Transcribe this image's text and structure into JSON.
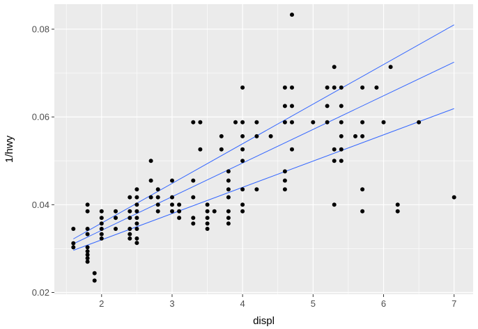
{
  "chart_data": {
    "type": "scatter",
    "xlabel": "displ",
    "ylabel": "1/hwy",
    "xlim": [
      1.33,
      7.27
    ],
    "ylim": [
      0.0196,
      0.0857
    ],
    "xticks": [
      2,
      3,
      4,
      5,
      6,
      7
    ],
    "yticks": [
      0.02,
      0.04,
      0.06,
      0.08
    ],
    "xtick_labels": [
      "2",
      "3",
      "4",
      "5",
      "6",
      "7"
    ],
    "ytick_labels": [
      "0.02",
      "0.04",
      "0.06",
      "0.08"
    ],
    "grid": true,
    "colors": {
      "panel": "#ebebeb",
      "grid": "#ffffff",
      "point": "#000000",
      "line": "#3366ff"
    },
    "points": [
      [
        1.6,
        0.0345
      ],
      [
        1.6,
        0.0312
      ],
      [
        1.6,
        0.0303
      ],
      [
        1.8,
        0.04
      ],
      [
        1.8,
        0.0385
      ],
      [
        1.8,
        0.0345
      ],
      [
        1.8,
        0.0333
      ],
      [
        1.8,
        0.0303
      ],
      [
        1.8,
        0.0294
      ],
      [
        1.8,
        0.0286
      ],
      [
        1.8,
        0.0278
      ],
      [
        1.8,
        0.027
      ],
      [
        1.9,
        0.0244
      ],
      [
        1.9,
        0.0227
      ],
      [
        2.0,
        0.0385
      ],
      [
        2.0,
        0.037
      ],
      [
        2.0,
        0.0357
      ],
      [
        2.0,
        0.0345
      ],
      [
        2.0,
        0.0333
      ],
      [
        2.0,
        0.0323
      ],
      [
        2.2,
        0.0385
      ],
      [
        2.2,
        0.037
      ],
      [
        2.2,
        0.0345
      ],
      [
        2.4,
        0.0417
      ],
      [
        2.4,
        0.0385
      ],
      [
        2.4,
        0.037
      ],
      [
        2.4,
        0.0345
      ],
      [
        2.4,
        0.0333
      ],
      [
        2.4,
        0.0323
      ],
      [
        2.5,
        0.0435
      ],
      [
        2.5,
        0.0417
      ],
      [
        2.5,
        0.04
      ],
      [
        2.5,
        0.0385
      ],
      [
        2.5,
        0.037
      ],
      [
        2.5,
        0.0357
      ],
      [
        2.5,
        0.0345
      ],
      [
        2.5,
        0.0323
      ],
      [
        2.5,
        0.0313
      ],
      [
        2.7,
        0.05
      ],
      [
        2.7,
        0.0455
      ],
      [
        2.7,
        0.0417
      ],
      [
        2.8,
        0.0435
      ],
      [
        2.8,
        0.0417
      ],
      [
        2.8,
        0.04
      ],
      [
        2.8,
        0.0385
      ],
      [
        3.0,
        0.0455
      ],
      [
        3.0,
        0.0417
      ],
      [
        3.0,
        0.04
      ],
      [
        3.0,
        0.0385
      ],
      [
        3.1,
        0.04
      ],
      [
        3.1,
        0.0385
      ],
      [
        3.1,
        0.037
      ],
      [
        3.3,
        0.0588
      ],
      [
        3.3,
        0.0455
      ],
      [
        3.3,
        0.0417
      ],
      [
        3.3,
        0.037
      ],
      [
        3.3,
        0.0357
      ],
      [
        3.4,
        0.0588
      ],
      [
        3.4,
        0.0526
      ],
      [
        3.5,
        0.04
      ],
      [
        3.5,
        0.0385
      ],
      [
        3.5,
        0.037
      ],
      [
        3.5,
        0.0357
      ],
      [
        3.5,
        0.0345
      ],
      [
        3.6,
        0.0385
      ],
      [
        3.7,
        0.0556
      ],
      [
        3.7,
        0.0526
      ],
      [
        3.8,
        0.0476
      ],
      [
        3.8,
        0.0455
      ],
      [
        3.8,
        0.0435
      ],
      [
        3.8,
        0.0417
      ],
      [
        3.8,
        0.0385
      ],
      [
        3.8,
        0.037
      ],
      [
        3.8,
        0.0357
      ],
      [
        3.9,
        0.0588
      ],
      [
        4.0,
        0.0667
      ],
      [
        4.0,
        0.0588
      ],
      [
        4.0,
        0.0556
      ],
      [
        4.0,
        0.0526
      ],
      [
        4.0,
        0.05
      ],
      [
        4.0,
        0.0435
      ],
      [
        4.0,
        0.04
      ],
      [
        4.0,
        0.0385
      ],
      [
        4.2,
        0.0588
      ],
      [
        4.2,
        0.0556
      ],
      [
        4.2,
        0.0435
      ],
      [
        4.4,
        0.0556
      ],
      [
        4.6,
        0.0667
      ],
      [
        4.6,
        0.0625
      ],
      [
        4.6,
        0.0588
      ],
      [
        4.6,
        0.0476
      ],
      [
        4.6,
        0.0455
      ],
      [
        4.6,
        0.0435
      ],
      [
        4.7,
        0.0833
      ],
      [
        4.7,
        0.0667
      ],
      [
        4.7,
        0.0625
      ],
      [
        4.7,
        0.0588
      ],
      [
        4.7,
        0.0526
      ],
      [
        5.0,
        0.0588
      ],
      [
        5.2,
        0.0667
      ],
      [
        5.2,
        0.0625
      ],
      [
        5.2,
        0.0588
      ],
      [
        5.3,
        0.0714
      ],
      [
        5.3,
        0.0667
      ],
      [
        5.3,
        0.0526
      ],
      [
        5.3,
        0.05
      ],
      [
        5.3,
        0.04
      ],
      [
        5.4,
        0.0667
      ],
      [
        5.4,
        0.0625
      ],
      [
        5.4,
        0.0588
      ],
      [
        5.4,
        0.0556
      ],
      [
        5.4,
        0.0526
      ],
      [
        5.4,
        0.05
      ],
      [
        5.6,
        0.0556
      ],
      [
        5.7,
        0.0667
      ],
      [
        5.7,
        0.0588
      ],
      [
        5.7,
        0.0556
      ],
      [
        5.7,
        0.0435
      ],
      [
        5.7,
        0.0385
      ],
      [
        5.9,
        0.0667
      ],
      [
        6.0,
        0.0588
      ],
      [
        6.1,
        0.0714
      ],
      [
        6.2,
        0.04
      ],
      [
        6.2,
        0.0385
      ],
      [
        6.5,
        0.0588
      ],
      [
        7.0,
        0.0417
      ]
    ],
    "lines": [
      {
        "values": [
          [
            1.6,
            0.0322
          ],
          [
            7.0,
            0.081
          ]
        ]
      },
      {
        "values": [
          [
            1.6,
            0.0311
          ],
          [
            7.0,
            0.0725
          ]
        ]
      },
      {
        "values": [
          [
            1.6,
            0.0296
          ],
          [
            7.0,
            0.0619
          ]
        ]
      }
    ]
  }
}
